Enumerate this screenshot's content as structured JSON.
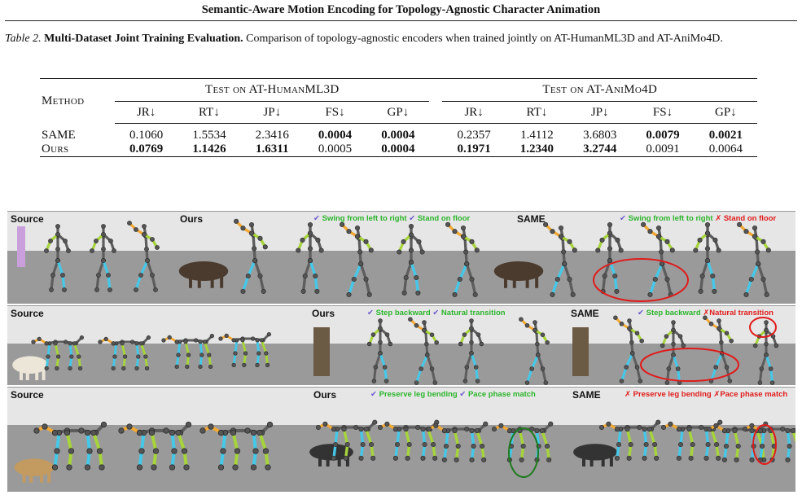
{
  "header": {
    "running_title": "Semantic-Aware Motion Encoding for Topology-Agnostic Character Animation"
  },
  "caption": {
    "label": "Table 2.",
    "title": "Multi-Dataset Joint Training Evaluation.",
    "text": "Comparison of topology-agnostic encoders when trained jointly on AT-HumanML3D and AT-AniMo4D."
  },
  "table": {
    "method_header": "Method",
    "groups": [
      "Test on AT-HumanML3D",
      "Test on AT-AniMo4D"
    ],
    "metrics": [
      "JR↓",
      "RT↓",
      "JP↓",
      "FS↓",
      "GP↓"
    ],
    "rows": [
      {
        "method": "SAME",
        "values": [
          "0.1060",
          "1.5534",
          "2.3416",
          "0.0004",
          "0.0004",
          "0.2357",
          "1.4112",
          "3.6803",
          "0.0079",
          "0.0021"
        ],
        "bold": [
          false,
          false,
          false,
          true,
          true,
          false,
          false,
          false,
          true,
          true
        ]
      },
      {
        "method": "Ours",
        "values": [
          "0.0769",
          "1.1426",
          "1.6311",
          "0.0005",
          "0.0004",
          "0.1971",
          "1.2340",
          "3.2744",
          "0.0091",
          "0.0064"
        ],
        "bold": [
          true,
          true,
          true,
          false,
          true,
          true,
          true,
          true,
          false,
          false
        ]
      }
    ]
  },
  "figure": {
    "panels": [
      {
        "labels": [
          "Source",
          "Ours",
          "SAME"
        ],
        "ours_notes": [
          {
            "mark": "✔",
            "text": "Swing from left to right",
            "good": true
          },
          {
            "mark": "✔",
            "text": "Stand on floor",
            "good": true
          }
        ],
        "same_notes": [
          {
            "mark": "✔",
            "text": "Swing from left to right",
            "good": true
          },
          {
            "mark": "✗",
            "text": "Stand on floor",
            "good": false
          }
        ]
      },
      {
        "labels": [
          "Source",
          "Ours",
          "SAME"
        ],
        "ours_notes": [
          {
            "mark": "✔",
            "text": "Step backward",
            "good": true
          },
          {
            "mark": "✔",
            "text": "Natural transition",
            "good": true
          }
        ],
        "same_notes": [
          {
            "mark": "✔",
            "text": "Step backward",
            "good": true
          },
          {
            "mark": "✗",
            "text": "Natural transition",
            "good": false
          }
        ]
      },
      {
        "labels": [
          "Source",
          "Ours",
          "SAME"
        ],
        "ours_notes": [
          {
            "mark": "✔",
            "text": "Preserve leg bending",
            "good": true
          },
          {
            "mark": "✔",
            "text": "Pace phase match",
            "good": true
          }
        ],
        "same_notes": [
          {
            "mark": "✗",
            "text": "Preserve leg bending",
            "good": false
          },
          {
            "mark": "✗",
            "text": "Pace phase match",
            "good": false
          }
        ]
      }
    ],
    "colors": {
      "floor": "#9a9a9a",
      "wall": "#e6e6e6",
      "bone_gray": "#5d5d5d",
      "cyan": "#45c8e8",
      "lime": "#a6d43a",
      "orange": "#f2a935",
      "good_circle": "#1e7a1e",
      "bad_circle": "#e01b1b"
    }
  }
}
